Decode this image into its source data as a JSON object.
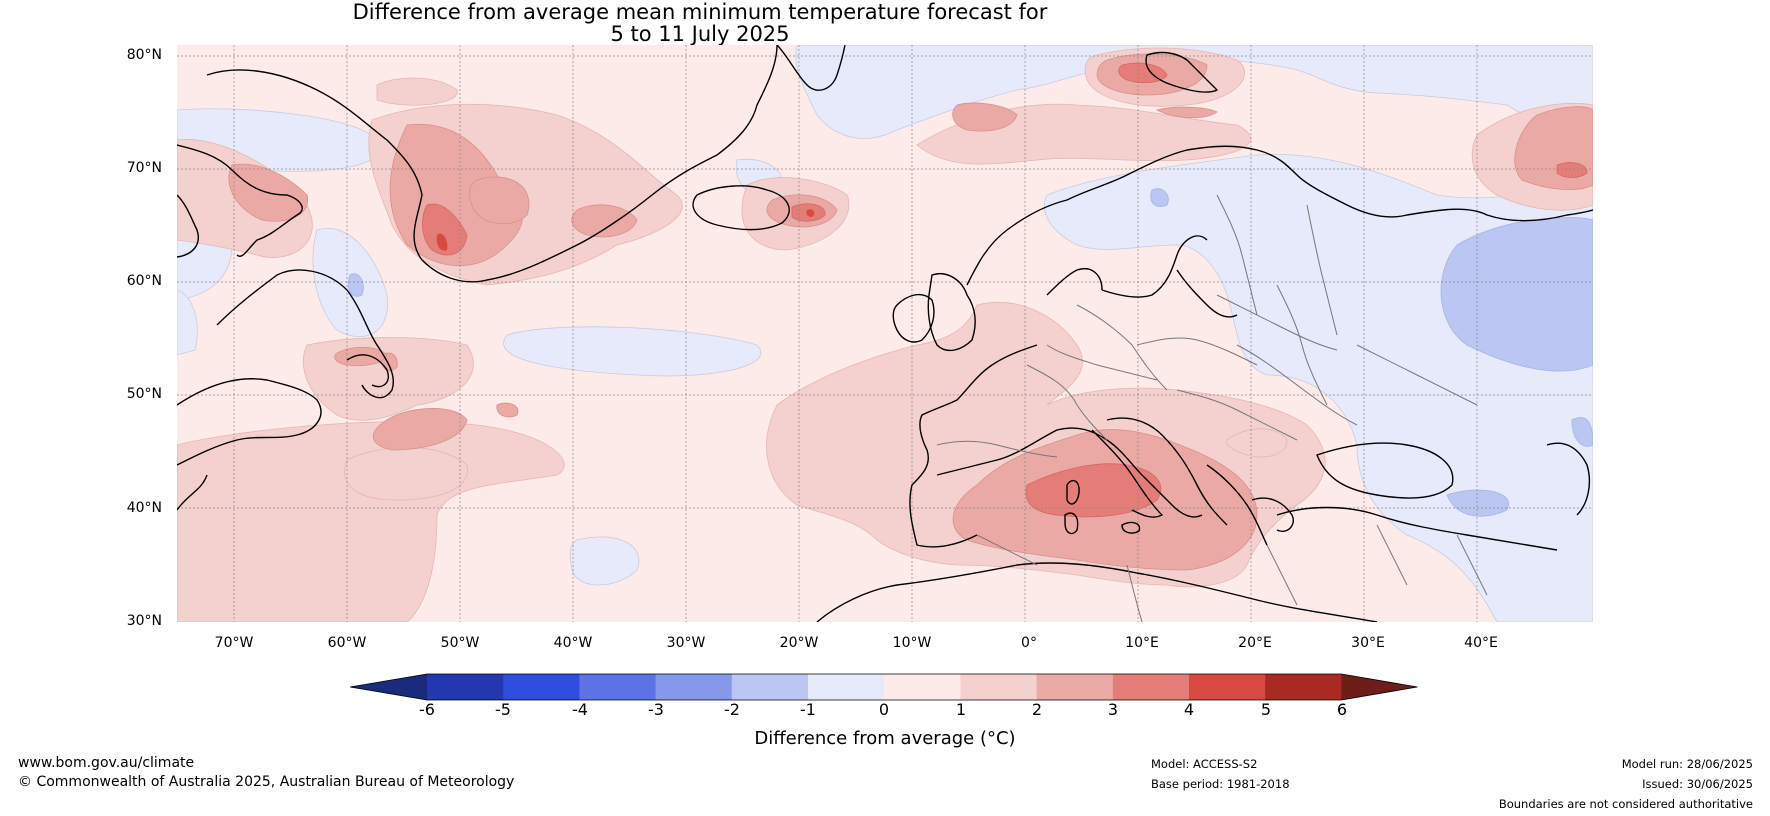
{
  "title": {
    "line1": "Difference from average mean minimum temperature forecast for",
    "line2": "5 to 11 July 2025"
  },
  "axes": {
    "lat_labels": [
      "80°N",
      "70°N",
      "60°N",
      "50°N",
      "40°N",
      "30°N"
    ],
    "lon_labels": [
      "70°W",
      "60°W",
      "50°W",
      "40°W",
      "30°W",
      "20°W",
      "10°W",
      "0°",
      "10°E",
      "20°E",
      "30°E",
      "40°E"
    ]
  },
  "colorbar": {
    "ticks": [
      "-6",
      "-5",
      "-4",
      "-3",
      "-2",
      "-1",
      "0",
      "1",
      "2",
      "3",
      "4",
      "5",
      "6"
    ],
    "label": "Difference from average (°C)",
    "colors": {
      "below": "#1a2a7c",
      "bins": [
        "#2337b0",
        "#2f4ee0",
        "#5b73e6",
        "#8598ec",
        "#bcc6f3",
        "#e6eafb",
        "#fdebe9",
        "#f4d0ce",
        "#eba9a5",
        "#e47d77",
        "#d84a3f",
        "#a92a23"
      ],
      "above": "#6e1d18"
    }
  },
  "footer": {
    "website": "www.bom.gov.au/climate",
    "copyright": "© Commonwealth of Australia 2025, Australian Bureau of Meteorology",
    "model": "Model: ACCESS-S2",
    "base_period": "Base period: 1981-2018",
    "model_run": "Model run: 28/06/2025",
    "issued": "Issued: 30/06/2025",
    "disclaimer": "Boundaries are not considered authoritative"
  }
}
